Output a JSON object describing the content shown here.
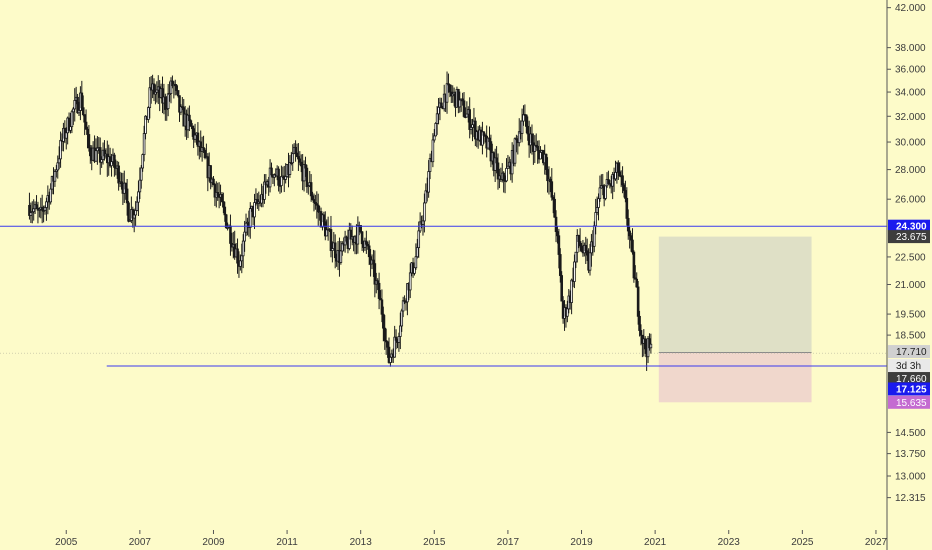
{
  "colors": {
    "background": "#fdfbc9",
    "candle": "#1a1a1a",
    "hline": "#3a3aee",
    "axis": "#555555",
    "tag_blue": "#1a1aee",
    "tag_dark": "#3d3d3d",
    "tag_gray": "#d0d0d0",
    "tag_violet": "#c46bd1",
    "profit_zone": "#dfe0c6",
    "loss_zone": "#f0d7cc"
  },
  "chart_data": {
    "type": "candlestick",
    "title": "",
    "xlabel": "",
    "ylabel": "",
    "scale": "log",
    "grid": false,
    "xlim": [
      2003.2,
      2027.3
    ],
    "ylim": [
      11.85,
      42.6
    ],
    "x_ticks": [
      "2005",
      "2007",
      "2009",
      "2011",
      "2013",
      "2015",
      "2017",
      "2019",
      "2021",
      "2023",
      "2025",
      "2027"
    ],
    "y_ticks": [
      "42.000",
      "38.000",
      "36.000",
      "34.000",
      "32.000",
      "30.000",
      "28.000",
      "26.000",
      "22.500",
      "21.000",
      "19.500",
      "18.500",
      "14.500",
      "13.750",
      "13.000",
      "12.315"
    ],
    "price_path": [
      [
        2004.0,
        25.6
      ],
      [
        2004.3,
        24.9
      ],
      [
        2004.6,
        26.8
      ],
      [
        2004.9,
        30.2
      ],
      [
        2005.2,
        32.5
      ],
      [
        2005.4,
        33.6
      ],
      [
        2005.6,
        29.5
      ],
      [
        2005.9,
        28.9
      ],
      [
        2006.2,
        28.7
      ],
      [
        2006.5,
        27.4
      ],
      [
        2006.7,
        25.1
      ],
      [
        2006.9,
        25.4
      ],
      [
        2007.1,
        30.1
      ],
      [
        2007.3,
        34.3
      ],
      [
        2007.5,
        33.8
      ],
      [
        2007.7,
        33.0
      ],
      [
        2007.9,
        34.8
      ],
      [
        2008.1,
        32.2
      ],
      [
        2008.4,
        31.0
      ],
      [
        2008.7,
        29.0
      ],
      [
        2009.0,
        27.0
      ],
      [
        2009.3,
        25.0
      ],
      [
        2009.5,
        23.6
      ],
      [
        2009.7,
        22.2
      ],
      [
        2010.0,
        25.0
      ],
      [
        2010.3,
        26.0
      ],
      [
        2010.6,
        28.0
      ],
      [
        2010.9,
        27.0
      ],
      [
        2011.2,
        29.0
      ],
      [
        2011.5,
        27.5
      ],
      [
        2011.8,
        25.5
      ],
      [
        2012.1,
        23.8
      ],
      [
        2012.4,
        22.5
      ],
      [
        2012.7,
        23.5
      ],
      [
        2013.0,
        24.0
      ],
      [
        2013.3,
        22.0
      ],
      [
        2013.6,
        19.5
      ],
      [
        2013.75,
        17.3
      ],
      [
        2014.0,
        18.5
      ],
      [
        2014.2,
        20.4
      ],
      [
        2014.5,
        22.5
      ],
      [
        2014.8,
        26.5
      ],
      [
        2015.0,
        31.0
      ],
      [
        2015.3,
        34.0
      ],
      [
        2015.6,
        33.5
      ],
      [
        2015.9,
        32.0
      ],
      [
        2016.2,
        30.5
      ],
      [
        2016.5,
        29.5
      ],
      [
        2016.8,
        27.0
      ],
      [
        2017.1,
        28.5
      ],
      [
        2017.4,
        32.0
      ],
      [
        2017.7,
        29.5
      ],
      [
        2018.0,
        29.0
      ],
      [
        2018.3,
        24.5
      ],
      [
        2018.5,
        19.3
      ],
      [
        2018.7,
        20.5
      ],
      [
        2018.9,
        23.5
      ],
      [
        2019.2,
        22.0
      ],
      [
        2019.5,
        26.5
      ],
      [
        2019.8,
        27.0
      ],
      [
        2020.0,
        28.0
      ],
      [
        2020.2,
        25.5
      ],
      [
        2020.4,
        22.0
      ],
      [
        2020.5,
        20.5
      ],
      [
        2020.6,
        18.8
      ],
      [
        2020.7,
        18.0
      ],
      [
        2020.8,
        17.9
      ],
      [
        2020.9,
        17.8
      ]
    ],
    "shapes": {
      "resistance": {
        "value": 24.3,
        "from_x": 2003.2,
        "to_x": 2027.3
      },
      "support": {
        "value": 17.125,
        "from_x": 2006.1,
        "to_x": 2027.3
      },
      "position": {
        "from_x": 2021.1,
        "to_x": 2025.25,
        "entry": 17.71,
        "target": 23.675,
        "stop": 15.635
      }
    },
    "price_labels": {
      "resistance": "24.300",
      "target": "23.675",
      "entry": "17.710",
      "countdown": "3d 3h",
      "last": "17.660",
      "support": "17.125",
      "stop": "15.635"
    }
  }
}
